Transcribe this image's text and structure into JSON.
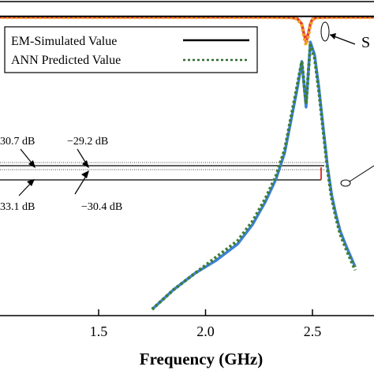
{
  "chart_data": {
    "type": "line",
    "xlabel": "Frequency (GHz)",
    "xlim": [
      1.0,
      2.9
    ],
    "ylim": [
      -90,
      0
    ],
    "x_ticks": [
      "1.5",
      "2.0",
      "2.5"
    ],
    "x_tick_values": [
      1.5,
      2.0,
      2.5
    ],
    "grid": false,
    "legend": {
      "placement": "top-left",
      "entries": [
        {
          "label": "EM-Simulated Value",
          "style": "solid"
        },
        {
          "label": "ANN Predicted  Value",
          "style": "dotted"
        }
      ]
    },
    "series": [
      {
        "color": "#e53935",
        "style": "solid",
        "x": [
          1.0,
          2.3,
          2.4,
          2.43,
          2.45,
          2.46,
          2.47,
          2.48,
          2.49,
          2.5,
          2.52,
          2.6,
          2.9
        ],
        "y": [
          -0.4,
          -0.4,
          -0.5,
          -0.9,
          -2.5,
          -5.5,
          -8.0,
          -5.5,
          -2.5,
          -1.0,
          -0.5,
          -0.4,
          -0.4
        ]
      },
      {
        "color": "#f2a81d",
        "style": "dotted",
        "x": [
          1.0,
          2.3,
          2.4,
          2.43,
          2.45,
          2.46,
          2.47,
          2.48,
          2.49,
          2.5,
          2.52,
          2.6,
          2.9
        ],
        "y": [
          -0.5,
          -0.5,
          -0.6,
          -1.0,
          -3.0,
          -6.5,
          -9.0,
          -6.5,
          -3.0,
          -1.2,
          -0.6,
          -0.5,
          -0.5
        ]
      },
      {
        "color": "#000000",
        "style": "solid",
        "x": [
          1.0,
          2.9
        ],
        "y": [
          -0.2,
          -0.2
        ]
      },
      {
        "color": "#3b82d6",
        "style": "solid",
        "x": [
          1.75,
          1.85,
          1.95,
          2.05,
          2.15,
          2.22,
          2.28,
          2.33,
          2.37,
          2.4,
          2.43,
          2.45,
          2.47,
          2.49,
          2.51,
          2.53,
          2.55,
          2.57,
          2.59,
          2.61,
          2.63,
          2.66,
          2.7
        ],
        "y": [
          -90,
          -84,
          -79,
          -75,
          -70,
          -64,
          -57,
          -50,
          -42,
          -32,
          -22,
          -14,
          -28,
          -8,
          -12,
          -22,
          -34,
          -46,
          -55,
          -61,
          -66,
          -71,
          -77
        ]
      },
      {
        "color": "#3f7d33",
        "style": "dotted",
        "x": [
          1.75,
          1.85,
          1.95,
          2.05,
          2.15,
          2.22,
          2.28,
          2.33,
          2.37,
          2.4,
          2.43,
          2.45,
          2.47,
          2.49,
          2.51,
          2.53,
          2.55,
          2.57,
          2.59,
          2.61,
          2.63,
          2.66,
          2.7
        ],
        "y": [
          -90,
          -84,
          -79,
          -74,
          -69,
          -63,
          -56,
          -49,
          -41,
          -31,
          -21,
          -14,
          -27,
          -9,
          -13,
          -23,
          -35,
          -47,
          -56,
          -62,
          -67,
          -72,
          -78
        ]
      }
    ],
    "annotations": {
      "s_label": "S",
      "upper": [
        "30.7 dB",
        "−29.2 dB"
      ],
      "lower": [
        "33.1 dB",
        "−30.4 dB"
      ]
    }
  }
}
